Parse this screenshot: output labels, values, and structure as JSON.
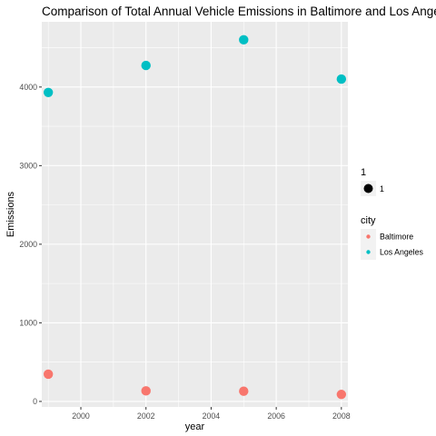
{
  "chart_data": {
    "type": "scatter",
    "title": "Comparison of Total Annual Vehicle Emissions in Baltimore and Los Angeles",
    "xlabel": "year",
    "ylabel": "Emissions",
    "xlim": [
      1998.8,
      2008.2
    ],
    "ylim": [
      -70,
      4830
    ],
    "x_ticks": [
      2000,
      2002,
      2004,
      2006,
      2008
    ],
    "y_ticks": [
      0,
      1000,
      2000,
      3000,
      4000
    ],
    "series": [
      {
        "name": "Baltimore",
        "color": "#F8766D",
        "points": [
          {
            "x": 1999,
            "y": 347
          },
          {
            "x": 2002,
            "y": 134
          },
          {
            "x": 2005,
            "y": 130
          },
          {
            "x": 2008,
            "y": 89
          }
        ]
      },
      {
        "name": "Los Angeles",
        "color": "#00BFC4",
        "points": [
          {
            "x": 1999,
            "y": 3931
          },
          {
            "x": 2002,
            "y": 4274
          },
          {
            "x": 2005,
            "y": 4601
          },
          {
            "x": 2008,
            "y": 4101
          }
        ]
      }
    ],
    "legends": [
      {
        "title": "1",
        "labels": [
          "1"
        ]
      },
      {
        "title": "city",
        "labels": [
          "Baltimore",
          "Los Angeles"
        ]
      }
    ],
    "panel_color": "#EBEBEB",
    "grid_color": "#FFFFFF",
    "legend_placement": "right"
  }
}
